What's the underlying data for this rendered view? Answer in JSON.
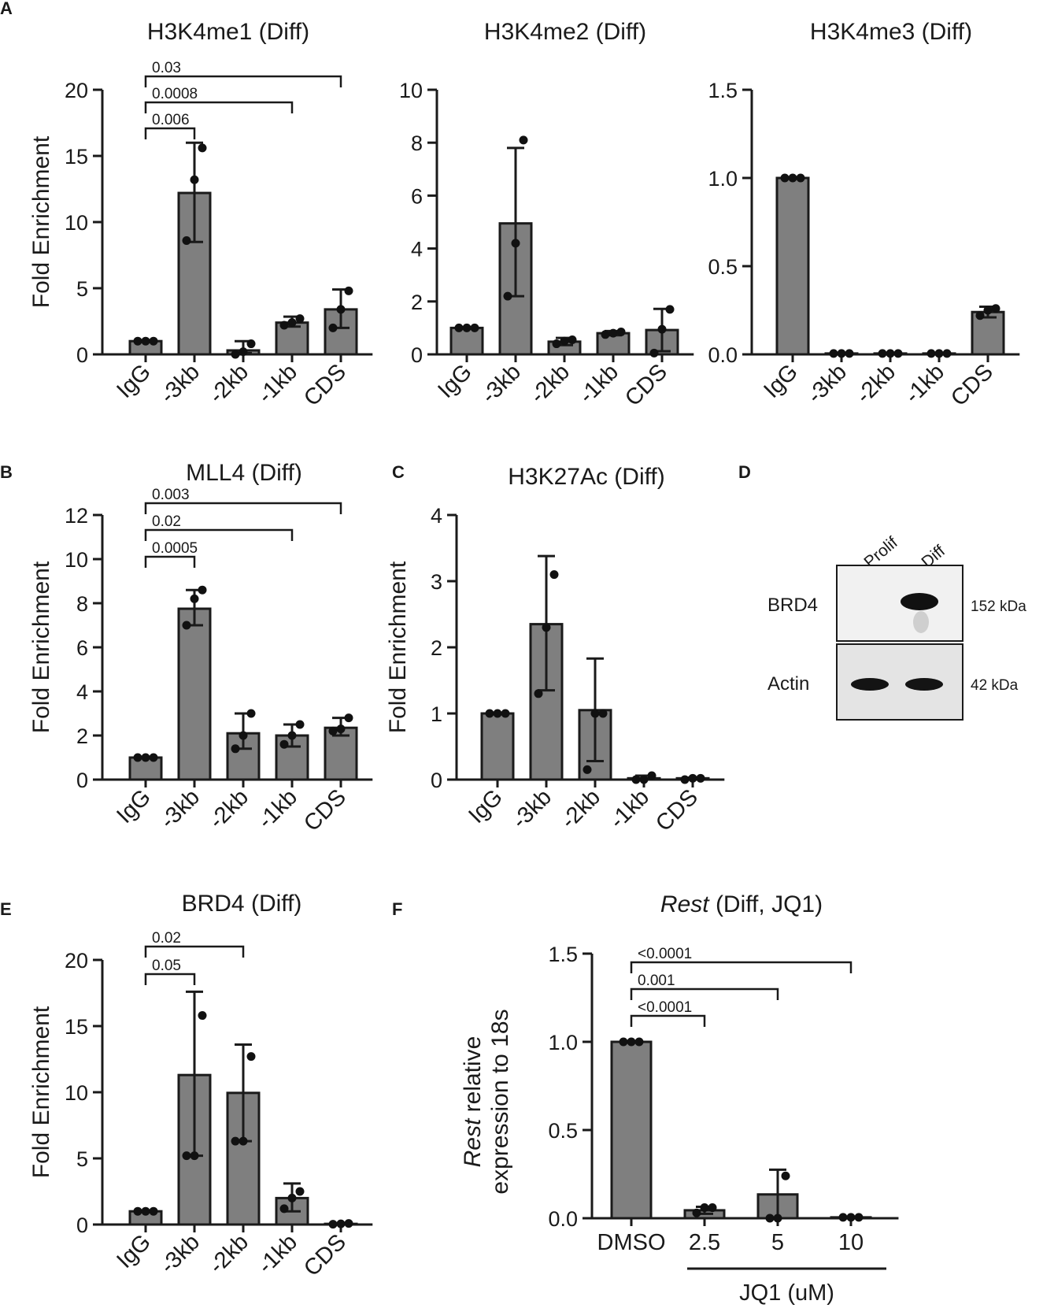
{
  "charts": [
    {
      "id": "A1",
      "panel": "A",
      "title": "H3K4me1 (Diff)",
      "ylabel": "Fold Enrichment",
      "ymax": 20,
      "ticks": [
        "0",
        "5",
        "10",
        "15",
        "20"
      ],
      "tick_values": [
        0,
        5,
        10,
        15,
        20
      ],
      "categories": [
        "IgG",
        "-3kb",
        "-2kb",
        "-1kb",
        "CDS"
      ],
      "means": [
        1.0,
        12.2,
        0.3,
        2.4,
        3.4
      ],
      "err_hi": [
        1.0,
        16.0,
        1.0,
        2.85,
        4.9
      ],
      "err_lo": [
        1.0,
        8.5,
        0.1,
        2.1,
        2.0
      ],
      "points": [
        [
          1.0,
          1.0,
          1.0
        ],
        [
          8.6,
          13.2,
          15.6
        ],
        [
          0.0,
          0.2,
          0.8
        ],
        [
          2.2,
          2.4,
          2.7
        ],
        [
          2.0,
          3.4,
          4.8
        ]
      ],
      "pvalues": [
        {
          "label": "0.006",
          "to": 1
        },
        {
          "label": "0.0008",
          "to": 3
        },
        {
          "label": "0.03",
          "to": 4
        }
      ]
    },
    {
      "id": "A2",
      "panel": "",
      "title": "H3K4me2 (Diff)",
      "ylabel": "",
      "ymax": 10,
      "ticks": [
        "0",
        "2",
        "4",
        "6",
        "8",
        "10"
      ],
      "tick_values": [
        0,
        2,
        4,
        6,
        8,
        10
      ],
      "categories": [
        "IgG",
        "-3kb",
        "-2kb",
        "-1kb",
        "CDS"
      ],
      "means": [
        1.0,
        4.95,
        0.48,
        0.8,
        0.92
      ],
      "err_hi": [
        1.0,
        7.8,
        0.62,
        0.88,
        1.72
      ],
      "err_lo": [
        1.0,
        2.2,
        0.35,
        0.72,
        0.12
      ],
      "points": [
        [
          1.0,
          1.0,
          1.0
        ],
        [
          2.2,
          4.2,
          8.1
        ],
        [
          0.4,
          0.5,
          0.55
        ],
        [
          0.75,
          0.8,
          0.85
        ],
        [
          0.05,
          0.95,
          1.7
        ]
      ],
      "pvalues": []
    },
    {
      "id": "A3",
      "panel": "",
      "title": "H3K4me3 (Diff)",
      "ylabel": "",
      "ymax": 1.5,
      "ticks": [
        "0.0",
        "0.5",
        "1.0",
        "1.5"
      ],
      "tick_values": [
        0,
        0.5,
        1.0,
        1.5
      ],
      "categories": [
        "IgG",
        "-3kb",
        "-2kb",
        "-1kb",
        "CDS"
      ],
      "means": [
        1.0,
        0.005,
        0.005,
        0.005,
        0.24
      ],
      "err_hi": [
        1.0,
        0.005,
        0.005,
        0.005,
        0.27
      ],
      "err_lo": [
        1.0,
        0.005,
        0.005,
        0.005,
        0.21
      ],
      "points": [
        [
          1.0,
          1.0,
          1.0
        ],
        [
          0.005,
          0.005,
          0.005
        ],
        [
          0.005,
          0.005,
          0.005
        ],
        [
          0.005,
          0.005,
          0.005
        ],
        [
          0.22,
          0.25,
          0.26
        ]
      ],
      "pvalues": []
    },
    {
      "id": "B",
      "panel": "B",
      "title": "MLL4 (Diff)",
      "ylabel": "Fold Enrichment",
      "ymax": 12,
      "ticks": [
        "0",
        "2",
        "4",
        "6",
        "8",
        "10",
        "12"
      ],
      "tick_values": [
        0,
        2,
        4,
        6,
        8,
        10,
        12
      ],
      "categories": [
        "IgG",
        "-3kb",
        "-2kb",
        "-1kb",
        "CDS"
      ],
      "means": [
        1.0,
        7.75,
        2.1,
        2.0,
        2.35
      ],
      "err_hi": [
        1.0,
        8.6,
        3.0,
        2.5,
        2.8
      ],
      "err_lo": [
        1.0,
        7.0,
        1.4,
        1.5,
        2.0
      ],
      "points": [
        [
          1.0,
          1.0,
          1.0
        ],
        [
          7.0,
          8.2,
          8.6
        ],
        [
          1.4,
          2.0,
          3.0
        ],
        [
          1.6,
          2.0,
          2.5
        ],
        [
          2.2,
          2.3,
          2.8
        ]
      ],
      "pvalues": [
        {
          "label": "0.0005",
          "to": 1
        },
        {
          "label": "0.02",
          "to": 3
        },
        {
          "label": "0.003",
          "to": 4
        }
      ]
    },
    {
      "id": "C",
      "panel": "C",
      "title": "H3K27Ac (Diff)",
      "ylabel": "Fold Enrichment",
      "ymax": 4,
      "ticks": [
        "0",
        "1",
        "2",
        "3",
        "4"
      ],
      "tick_values": [
        0,
        1,
        2,
        3,
        4
      ],
      "categories": [
        "IgG",
        "-3kb",
        "-2kb",
        "-1kb",
        "CDS"
      ],
      "means": [
        1.0,
        2.35,
        1.05,
        0.02,
        0.02
      ],
      "err_hi": [
        1.0,
        3.38,
        1.83,
        0.06,
        0.03
      ],
      "err_lo": [
        1.0,
        1.35,
        0.28,
        0.0,
        0.0
      ],
      "points": [
        [
          1.0,
          1.0,
          1.0
        ],
        [
          1.3,
          2.3,
          3.1
        ],
        [
          0.15,
          1.0,
          1.0
        ],
        [
          0.0,
          0.0,
          0.06
        ],
        [
          0.0,
          0.02,
          0.02
        ]
      ],
      "pvalues": []
    },
    {
      "id": "E",
      "panel": "E",
      "title": "BRD4 (Diff)",
      "ylabel": "Fold Enrichment",
      "ymax": 20,
      "ticks": [
        "0",
        "5",
        "10",
        "15",
        "20"
      ],
      "tick_values": [
        0,
        5,
        10,
        15,
        20
      ],
      "categories": [
        "IgG",
        "-3kb",
        "-2kb",
        "-1kb",
        "CDS"
      ],
      "means": [
        1.0,
        11.3,
        9.95,
        2.0,
        0.05
      ],
      "err_hi": [
        1.0,
        17.6,
        13.6,
        3.1,
        0.1
      ],
      "err_lo": [
        1.0,
        5.2,
        6.3,
        1.0,
        0.0
      ],
      "points": [
        [
          1.0,
          1.0,
          1.0
        ],
        [
          5.2,
          5.2,
          15.8
        ],
        [
          6.3,
          6.3,
          12.7
        ],
        [
          1.2,
          2.0,
          2.5
        ],
        [
          0.02,
          0.05,
          0.08
        ]
      ],
      "pvalues": [
        {
          "label": "0.05",
          "to": 1
        },
        {
          "label": "0.02",
          "to": 2
        }
      ]
    },
    {
      "id": "F",
      "panel": "F",
      "title_italic": "Rest",
      "title_rest": " (Diff, JQ1)",
      "ylabel_italic": "Rest",
      "ylabel_line1_rest": " relative",
      "ylabel_line2": "expression to 18s",
      "ymax": 1.5,
      "ticks": [
        "0.0",
        "0.5",
        "1.0",
        "1.5"
      ],
      "tick_values": [
        0,
        0.5,
        1.0,
        1.5
      ],
      "categories": [
        "DMSO",
        "2.5",
        "5",
        "10"
      ],
      "means": [
        1.0,
        0.045,
        0.135,
        0.005
      ],
      "err_hi": [
        1.0,
        0.065,
        0.275,
        0.005
      ],
      "err_lo": [
        1.0,
        0.025,
        0.0,
        0.005
      ],
      "points": [
        [
          1.0,
          1.0,
          1.0
        ],
        [
          0.03,
          0.06,
          0.06
        ],
        [
          0.0,
          0.0,
          0.24
        ],
        [
          0.005,
          0.005,
          0.005
        ]
      ],
      "pvalues": [
        {
          "label": "<0.0001",
          "to": 1
        },
        {
          "label": "0.001",
          "to": 2
        },
        {
          "label": "<0.0001",
          "to": 3
        }
      ],
      "group_label": "JQ1 (uM)"
    }
  ],
  "blot": {
    "panel": "D",
    "lanes": [
      "Prolif",
      "Diff"
    ],
    "rows": [
      {
        "protein": "BRD4",
        "size": "152 kDa",
        "bands": [
          false,
          true
        ]
      },
      {
        "protein": "Actin",
        "size": "42 kDa",
        "bands": [
          true,
          true
        ]
      }
    ]
  }
}
